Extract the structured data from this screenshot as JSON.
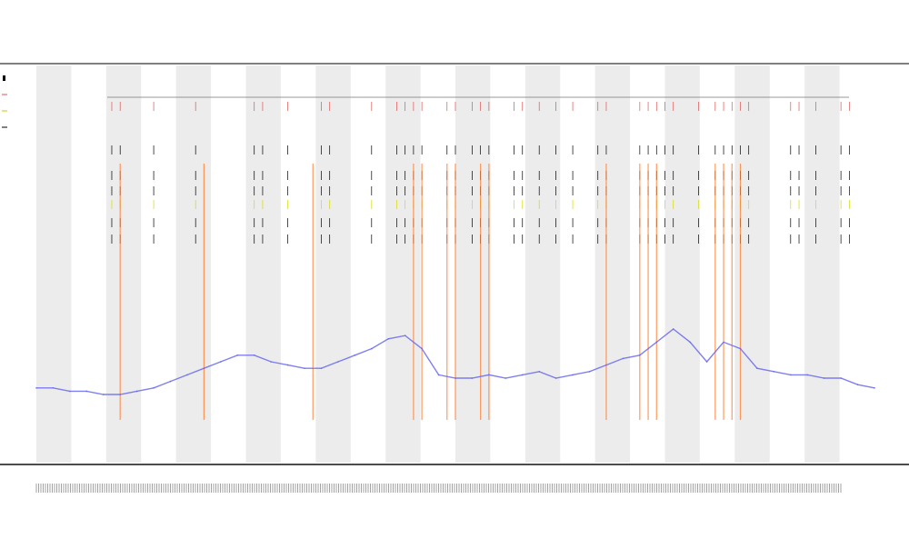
{
  "chart_data": {
    "type": "line",
    "title": "",
    "subtitle_lines": [],
    "xlabel": "",
    "ylabel": "",
    "legend_placement": "top-left",
    "legend": [
      {
        "marker": "box",
        "color": "#000000"
      },
      {
        "marker": "line",
        "color": "#e05050"
      },
      {
        "marker": "line",
        "color": "#c8c800"
      },
      {
        "marker": "line",
        "color": "#000000"
      }
    ],
    "band_count": 24,
    "series": [
      {
        "kind": "signal",
        "color": "#6a6aee",
        "ylim": [
          0,
          100
        ],
        "x": [
          0,
          2,
          4,
          6,
          8,
          10,
          12,
          14,
          16,
          18,
          20,
          22,
          24,
          26,
          28,
          30,
          32,
          34,
          36,
          38,
          40,
          42,
          44,
          46,
          48,
          50,
          52,
          54,
          56,
          58,
          60,
          62,
          64,
          66,
          68,
          70,
          72,
          74,
          76,
          78,
          80,
          82,
          84,
          86,
          88,
          90,
          92,
          94,
          96,
          98,
          100
        ],
        "values": [
          12,
          12,
          11,
          11,
          10,
          10,
          11,
          12,
          14,
          16,
          18,
          20,
          22,
          22,
          20,
          19,
          18,
          18,
          20,
          22,
          24,
          27,
          28,
          24,
          16,
          15,
          15,
          16,
          15,
          16,
          17,
          15,
          16,
          17,
          19,
          21,
          22,
          26,
          30,
          26,
          20,
          26,
          24,
          18,
          17,
          16,
          16,
          15,
          15,
          13,
          12
        ]
      },
      {
        "kind": "events",
        "color": "#ff7a2a",
        "x": [
          10,
          20,
          33,
          45,
          46,
          49,
          50,
          53,
          54,
          68,
          72,
          73,
          74,
          81,
          82,
          83,
          84
        ]
      },
      {
        "kind": "ticks",
        "color": "#000000",
        "rows": 7,
        "x": [
          9,
          10,
          14,
          19,
          26,
          27,
          30,
          34,
          35,
          40,
          43,
          44,
          45,
          46,
          49,
          50,
          52,
          53,
          54,
          57,
          58,
          60,
          62,
          64,
          67,
          68,
          72,
          73,
          74,
          75,
          76,
          79,
          81,
          82,
          83,
          84,
          85,
          90,
          91,
          93,
          96,
          97
        ]
      }
    ]
  }
}
